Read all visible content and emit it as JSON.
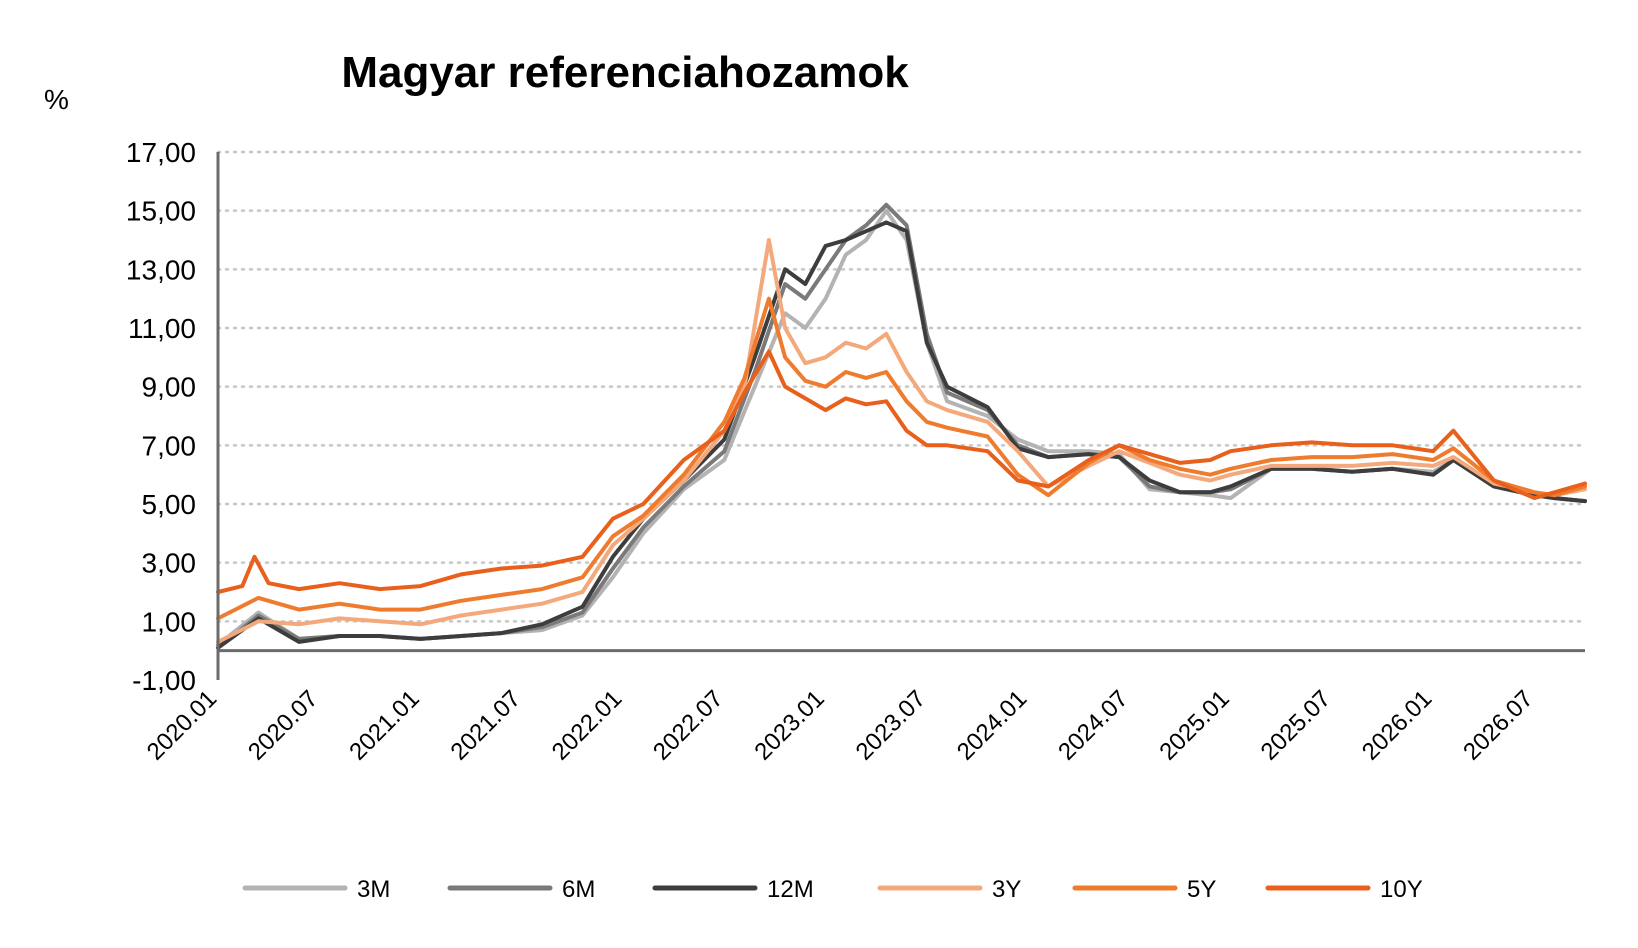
{
  "chart_data": {
    "type": "line",
    "title": "Magyar referenciahozamok",
    "ylabel": "%",
    "ylim": [
      -1,
      17
    ],
    "yticks": [
      "17,00",
      "15,00",
      "13,00",
      "11,00",
      "9,00",
      "7,00",
      "5,00",
      "3,00",
      "1,00",
      "-1,00"
    ],
    "ytick_values": [
      17,
      15,
      13,
      11,
      9,
      7,
      5,
      3,
      1,
      -1
    ],
    "xticks": [
      "2020.01",
      "2020.07",
      "2021.01",
      "2021.07",
      "2022.01",
      "2022.07",
      "2023.01",
      "2023.07",
      "2024.01",
      "2024.07",
      "2025.01",
      "2025.07",
      "2026.01",
      "2026.07"
    ],
    "xtick_values": [
      2020.0,
      2020.5,
      2021.0,
      2021.5,
      2022.0,
      2022.5,
      2023.0,
      2023.5,
      2024.0,
      2024.5,
      2025.0,
      2025.5,
      2026.0,
      2026.5
    ],
    "xlim": [
      2020.0,
      2026.75
    ],
    "grid": true,
    "legend": "bottom",
    "series": [
      {
        "name": "3M",
        "color": "#b3b3b3",
        "x": [
          2020.0,
          2020.2,
          2020.4,
          2020.6,
          2020.8,
          2021.0,
          2021.2,
          2021.4,
          2021.6,
          2021.8,
          2021.95,
          2022.1,
          2022.3,
          2022.5,
          2022.65,
          2022.8,
          2022.9,
          2023.0,
          2023.1,
          2023.2,
          2023.3,
          2023.4,
          2023.5,
          2023.6,
          2023.8,
          2023.95,
          2024.1,
          2024.3,
          2024.45,
          2024.6,
          2024.75,
          2024.9,
          2025.0,
          2025.2,
          2025.4,
          2025.6,
          2025.8,
          2026.0,
          2026.1,
          2026.3,
          2026.5,
          2026.6,
          2026.75
        ],
        "values": [
          0.2,
          1.3,
          0.4,
          0.5,
          0.5,
          0.4,
          0.5,
          0.6,
          0.7,
          1.2,
          2.5,
          4.0,
          5.5,
          6.5,
          9.0,
          11.5,
          11.0,
          12.0,
          13.5,
          14.0,
          15.0,
          14.0,
          10.5,
          8.5,
          8.0,
          7.2,
          6.8,
          6.8,
          6.7,
          5.5,
          5.4,
          5.3,
          5.2,
          6.2,
          6.2,
          6.1,
          6.2,
          6.1,
          6.5,
          5.6,
          5.3,
          5.2,
          5.1
        ]
      },
      {
        "name": "6M",
        "color": "#7a7a7a",
        "x": [
          2020.0,
          2020.2,
          2020.4,
          2020.6,
          2020.8,
          2021.0,
          2021.2,
          2021.4,
          2021.6,
          2021.8,
          2021.95,
          2022.1,
          2022.3,
          2022.5,
          2022.65,
          2022.8,
          2022.9,
          2023.0,
          2023.1,
          2023.2,
          2023.3,
          2023.4,
          2023.5,
          2023.6,
          2023.8,
          2023.95,
          2024.1,
          2024.3,
          2024.45,
          2024.6,
          2024.75,
          2024.9,
          2025.0,
          2025.2,
          2025.4,
          2025.6,
          2025.8,
          2026.0,
          2026.1,
          2026.3,
          2026.5,
          2026.6,
          2026.75
        ],
        "values": [
          0.1,
          1.2,
          0.4,
          0.5,
          0.5,
          0.4,
          0.5,
          0.6,
          0.8,
          1.3,
          2.8,
          4.2,
          5.6,
          6.8,
          9.5,
          12.5,
          12.0,
          13.0,
          14.0,
          14.5,
          15.2,
          14.5,
          10.8,
          8.8,
          8.2,
          7.0,
          6.6,
          6.7,
          6.6,
          5.6,
          5.4,
          5.4,
          5.5,
          6.2,
          6.2,
          6.1,
          6.2,
          6.0,
          6.5,
          5.6,
          5.3,
          5.2,
          5.1
        ]
      },
      {
        "name": "12M",
        "color": "#3d3d3d",
        "x": [
          2020.0,
          2020.2,
          2020.4,
          2020.6,
          2020.8,
          2021.0,
          2021.2,
          2021.4,
          2021.6,
          2021.8,
          2021.95,
          2022.1,
          2022.3,
          2022.5,
          2022.65,
          2022.8,
          2022.9,
          2023.0,
          2023.1,
          2023.2,
          2023.3,
          2023.4,
          2023.5,
          2023.6,
          2023.8,
          2023.95,
          2024.1,
          2024.3,
          2024.45,
          2024.6,
          2024.75,
          2024.9,
          2025.0,
          2025.2,
          2025.4,
          2025.6,
          2025.8,
          2026.0,
          2026.1,
          2026.3,
          2026.5,
          2026.6,
          2026.75
        ],
        "values": [
          0.1,
          1.1,
          0.3,
          0.5,
          0.5,
          0.4,
          0.5,
          0.6,
          0.9,
          1.5,
          3.2,
          4.5,
          5.8,
          7.2,
          10.0,
          13.0,
          12.5,
          13.8,
          14.0,
          14.3,
          14.6,
          14.3,
          10.5,
          9.0,
          8.3,
          6.9,
          6.6,
          6.7,
          6.6,
          5.8,
          5.4,
          5.4,
          5.6,
          6.2,
          6.2,
          6.1,
          6.2,
          6.0,
          6.5,
          5.6,
          5.3,
          5.2,
          5.1
        ]
      },
      {
        "name": "3Y",
        "color": "#f4a97c",
        "x": [
          2020.0,
          2020.2,
          2020.4,
          2020.6,
          2020.8,
          2021.0,
          2021.2,
          2021.4,
          2021.6,
          2021.8,
          2021.95,
          2022.1,
          2022.3,
          2022.5,
          2022.6,
          2022.72,
          2022.8,
          2022.9,
          2023.0,
          2023.1,
          2023.2,
          2023.3,
          2023.4,
          2023.5,
          2023.6,
          2023.8,
          2023.95,
          2024.1,
          2024.3,
          2024.45,
          2024.6,
          2024.75,
          2024.9,
          2025.0,
          2025.2,
          2025.4,
          2025.6,
          2025.8,
          2026.0,
          2026.1,
          2026.3,
          2026.5,
          2026.6,
          2026.75
        ],
        "values": [
          0.3,
          1.0,
          0.9,
          1.1,
          1.0,
          0.9,
          1.2,
          1.4,
          1.6,
          2.0,
          3.6,
          4.5,
          5.8,
          7.5,
          9.0,
          14.0,
          11.0,
          9.8,
          10.0,
          10.5,
          10.3,
          10.8,
          9.5,
          8.5,
          8.2,
          7.8,
          6.8,
          5.6,
          6.3,
          6.8,
          6.4,
          6.0,
          5.8,
          6.0,
          6.3,
          6.3,
          6.3,
          6.4,
          6.3,
          6.6,
          5.7,
          5.4,
          5.3,
          5.5
        ]
      },
      {
        "name": "5Y",
        "color": "#ef7c2e",
        "x": [
          2020.0,
          2020.2,
          2020.4,
          2020.6,
          2020.8,
          2021.0,
          2021.2,
          2021.4,
          2021.6,
          2021.8,
          2021.95,
          2022.1,
          2022.3,
          2022.5,
          2022.6,
          2022.72,
          2022.8,
          2022.9,
          2023.0,
          2023.1,
          2023.2,
          2023.3,
          2023.4,
          2023.5,
          2023.6,
          2023.8,
          2023.95,
          2024.1,
          2024.3,
          2024.45,
          2024.6,
          2024.75,
          2024.9,
          2025.0,
          2025.2,
          2025.4,
          2025.6,
          2025.8,
          2026.0,
          2026.1,
          2026.3,
          2026.5,
          2026.6,
          2026.75
        ],
        "values": [
          1.1,
          1.8,
          1.4,
          1.6,
          1.4,
          1.4,
          1.7,
          1.9,
          2.1,
          2.5,
          3.9,
          4.6,
          6.0,
          7.8,
          9.3,
          12.0,
          10.0,
          9.2,
          9.0,
          9.5,
          9.3,
          9.5,
          8.5,
          7.8,
          7.6,
          7.3,
          6.0,
          5.3,
          6.4,
          7.0,
          6.5,
          6.2,
          6.0,
          6.2,
          6.5,
          6.6,
          6.6,
          6.7,
          6.5,
          6.9,
          5.8,
          5.4,
          5.3,
          5.6
        ]
      },
      {
        "name": "10Y",
        "color": "#e8601c",
        "x": [
          2020.0,
          2020.12,
          2020.18,
          2020.25,
          2020.4,
          2020.6,
          2020.8,
          2021.0,
          2021.2,
          2021.4,
          2021.6,
          2021.8,
          2021.95,
          2022.1,
          2022.3,
          2022.5,
          2022.6,
          2022.72,
          2022.8,
          2022.9,
          2023.0,
          2023.1,
          2023.2,
          2023.3,
          2023.4,
          2023.5,
          2023.6,
          2023.8,
          2023.95,
          2024.1,
          2024.3,
          2024.45,
          2024.6,
          2024.75,
          2024.9,
          2025.0,
          2025.2,
          2025.4,
          2025.6,
          2025.8,
          2026.0,
          2026.1,
          2026.3,
          2026.5,
          2026.6,
          2026.75
        ],
        "values": [
          2.0,
          2.2,
          3.2,
          2.3,
          2.1,
          2.3,
          2.1,
          2.2,
          2.6,
          2.8,
          2.9,
          3.2,
          4.5,
          5.0,
          6.5,
          7.5,
          8.8,
          10.2,
          9.0,
          8.6,
          8.2,
          8.6,
          8.4,
          8.5,
          7.5,
          7.0,
          7.0,
          6.8,
          5.8,
          5.6,
          6.5,
          7.0,
          6.7,
          6.4,
          6.5,
          6.8,
          7.0,
          7.1,
          7.0,
          7.0,
          6.8,
          7.5,
          5.8,
          5.2,
          5.4,
          5.7
        ]
      }
    ]
  }
}
